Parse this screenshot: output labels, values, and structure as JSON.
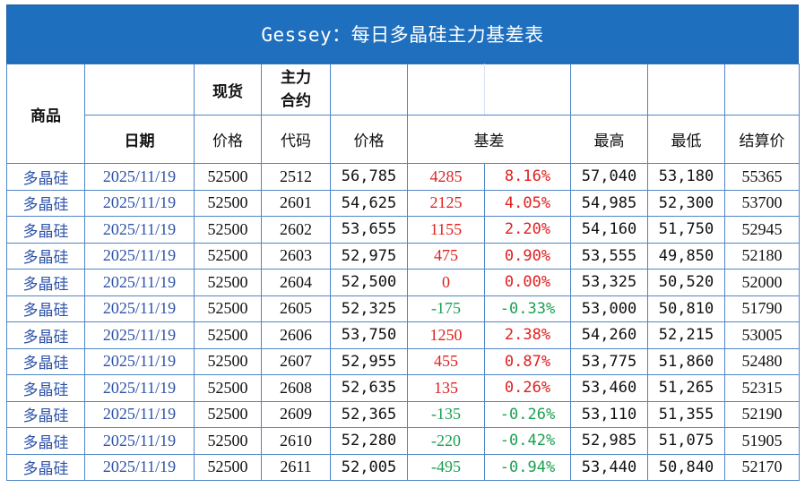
{
  "title": "Gessey：每日多晶硅主力基差表",
  "header": {
    "product": "商品",
    "spot": "现货",
    "main_contract_line1": "主力",
    "main_contract_line2": "合约",
    "date": "日期",
    "spot_price": "价格",
    "code": "代码",
    "futures_price": "价格",
    "basis": "基差",
    "high": "最高",
    "low": "最低",
    "settle": "结算价"
  },
  "rows": [
    {
      "product": "多晶硅",
      "date": "2025/11/19",
      "spot": "52500",
      "code": "2512",
      "price": "56,785",
      "basis": "4285",
      "basis_pct": "8.16%",
      "sign": "pos",
      "high": "57,040",
      "low": "53,180",
      "settle": "55365"
    },
    {
      "product": "多晶硅",
      "date": "2025/11/19",
      "spot": "52500",
      "code": "2601",
      "price": "54,625",
      "basis": "2125",
      "basis_pct": "4.05%",
      "sign": "pos",
      "high": "54,985",
      "low": "52,300",
      "settle": "53700"
    },
    {
      "product": "多晶硅",
      "date": "2025/11/19",
      "spot": "52500",
      "code": "2602",
      "price": "53,655",
      "basis": "1155",
      "basis_pct": "2.20%",
      "sign": "pos",
      "high": "54,160",
      "low": "51,750",
      "settle": "52945"
    },
    {
      "product": "多晶硅",
      "date": "2025/11/19",
      "spot": "52500",
      "code": "2603",
      "price": "52,975",
      "basis": "475",
      "basis_pct": "0.90%",
      "sign": "pos",
      "high": "53,555",
      "low": "49,850",
      "settle": "52180"
    },
    {
      "product": "多晶硅",
      "date": "2025/11/19",
      "spot": "52500",
      "code": "2604",
      "price": "52,500",
      "basis": "0",
      "basis_pct": "0.00%",
      "sign": "pos",
      "high": "53,325",
      "low": "50,520",
      "settle": "52000"
    },
    {
      "product": "多晶硅",
      "date": "2025/11/19",
      "spot": "52500",
      "code": "2605",
      "price": "52,325",
      "basis": "-175",
      "basis_pct": "-0.33%",
      "sign": "neg",
      "high": "53,000",
      "low": "50,810",
      "settle": "51790"
    },
    {
      "product": "多晶硅",
      "date": "2025/11/19",
      "spot": "52500",
      "code": "2606",
      "price": "53,750",
      "basis": "1250",
      "basis_pct": "2.38%",
      "sign": "pos",
      "high": "54,260",
      "low": "52,215",
      "settle": "53005"
    },
    {
      "product": "多晶硅",
      "date": "2025/11/19",
      "spot": "52500",
      "code": "2607",
      "price": "52,955",
      "basis": "455",
      "basis_pct": "0.87%",
      "sign": "pos",
      "high": "53,775",
      "low": "51,860",
      "settle": "52480"
    },
    {
      "product": "多晶硅",
      "date": "2025/11/19",
      "spot": "52500",
      "code": "2608",
      "price": "52,635",
      "basis": "135",
      "basis_pct": "0.26%",
      "sign": "pos",
      "high": "53,460",
      "low": "51,265",
      "settle": "52315"
    },
    {
      "product": "多晶硅",
      "date": "2025/11/19",
      "spot": "52500",
      "code": "2609",
      "price": "52,365",
      "basis": "-135",
      "basis_pct": "-0.26%",
      "sign": "neg",
      "high": "53,110",
      "low": "51,355",
      "settle": "52190"
    },
    {
      "product": "多晶硅",
      "date": "2025/11/19",
      "spot": "52500",
      "code": "2610",
      "price": "52,280",
      "basis": "-220",
      "basis_pct": "-0.42%",
      "sign": "neg",
      "high": "52,985",
      "low": "51,075",
      "settle": "51905"
    },
    {
      "product": "多晶硅",
      "date": "2025/11/19",
      "spot": "52500",
      "code": "2611",
      "price": "52,005",
      "basis": "-495",
      "basis_pct": "-0.94%",
      "sign": "neg",
      "high": "53,440",
      "low": "50,840",
      "settle": "52170"
    }
  ],
  "colors": {
    "title_bg": "#1f6fbf",
    "border": "#4f86c6",
    "link_text": "#2d52a8",
    "positive": "#e02020",
    "negative": "#1aa050"
  }
}
